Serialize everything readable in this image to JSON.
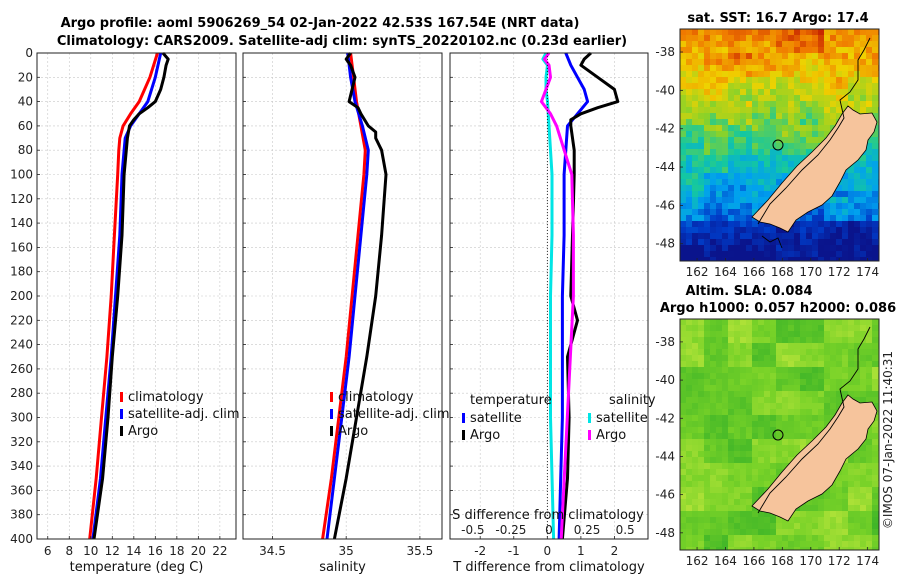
{
  "title": {
    "line1": "Argo profile: aoml 5906269_54 02-Jan-2022 42.53S 167.54E (NRT data)",
    "line2": "Climatology: CARS2009. Satellite-adj clim: synTS_20220102.nc (0.23d earlier)"
  },
  "colors": {
    "climatology": "#ff0000",
    "satellite": "#0000ff",
    "argo": "#000000",
    "cyan": "#00e5e5",
    "magenta": "#ff00ff"
  },
  "chart_data": [
    {
      "type": "line",
      "name": "temperature",
      "xlabel": "temperature (deg C)",
      "ylabel": "",
      "xlim": [
        5,
        23.5
      ],
      "ylim": [
        400,
        0
      ],
      "xticks": [
        6,
        8,
        10,
        12,
        14,
        16,
        18,
        20,
        22
      ],
      "yticks": [
        0,
        20,
        40,
        60,
        80,
        100,
        120,
        140,
        160,
        180,
        200,
        220,
        240,
        260,
        280,
        300,
        320,
        340,
        360,
        380,
        400
      ],
      "legend": [
        "climatology",
        "satellite-adj. clim",
        "Argo"
      ],
      "legend_position": "lower-right",
      "series": [
        {
          "name": "climatology",
          "depth": [
            0,
            20,
            40,
            50,
            60,
            70,
            80,
            100,
            150,
            200,
            250,
            300,
            350,
            400
          ],
          "values": [
            16.2,
            15.5,
            14.5,
            13.7,
            13.0,
            12.7,
            12.6,
            12.5,
            12.2,
            11.9,
            11.5,
            11.0,
            10.5,
            9.9
          ]
        },
        {
          "name": "satellite-adj. clim",
          "depth": [
            0,
            20,
            40,
            50,
            60,
            70,
            80,
            100,
            150,
            200,
            250,
            300,
            350,
            400
          ],
          "values": [
            16.5,
            16.0,
            15.3,
            14.5,
            13.7,
            13.2,
            13.1,
            12.9,
            12.7,
            12.3,
            11.9,
            11.4,
            10.9,
            10.2
          ]
        },
        {
          "name": "Argo",
          "depth": [
            0,
            5,
            10,
            20,
            30,
            40,
            45,
            50,
            55,
            60,
            70,
            80,
            100,
            150,
            200,
            250,
            300,
            350,
            400
          ],
          "values": [
            16.7,
            17.2,
            17.0,
            16.8,
            16.5,
            16.0,
            15.3,
            14.5,
            14.0,
            13.6,
            13.4,
            13.3,
            13.1,
            12.9,
            12.5,
            12.0,
            11.6,
            11.1,
            10.3
          ]
        }
      ]
    },
    {
      "type": "line",
      "name": "salinity",
      "xlabel": "salinity",
      "ylabel": "",
      "xlim": [
        34.3,
        35.65
      ],
      "ylim": [
        400,
        0
      ],
      "xticks": [
        34.5,
        35,
        35.5
      ],
      "xticklabels": [
        "34.5",
        "35",
        "35.5"
      ],
      "legend": [
        "climatology",
        "satellite-adj. clim",
        "Argo"
      ],
      "legend_position": "lower-right",
      "series": [
        {
          "name": "climatology",
          "depth": [
            0,
            20,
            40,
            60,
            80,
            100,
            150,
            200,
            250,
            300,
            350,
            400
          ],
          "values": [
            35.03,
            35.05,
            35.07,
            35.1,
            35.13,
            35.12,
            35.08,
            35.04,
            35.0,
            34.95,
            34.9,
            34.84
          ]
        },
        {
          "name": "satellite-adj. clim",
          "depth": [
            0,
            20,
            40,
            60,
            80,
            100,
            150,
            200,
            250,
            300,
            350,
            400
          ],
          "values": [
            35.01,
            35.03,
            35.06,
            35.11,
            35.15,
            35.14,
            35.1,
            35.06,
            35.02,
            34.97,
            34.92,
            34.87
          ]
        },
        {
          "name": "Argo",
          "depth": [
            0,
            5,
            10,
            20,
            30,
            40,
            45,
            50,
            60,
            65,
            70,
            80,
            100,
            150,
            200,
            250,
            300,
            350,
            400
          ],
          "values": [
            35.03,
            35.0,
            35.03,
            35.06,
            35.04,
            35.02,
            35.08,
            35.1,
            35.15,
            35.2,
            35.2,
            35.24,
            35.27,
            35.24,
            35.2,
            35.14,
            35.07,
            35.0,
            34.92
          ]
        }
      ]
    },
    {
      "type": "line",
      "name": "differences",
      "xlabel": "T difference from climatology",
      "xlabel_top": "S difference from climatology",
      "xlim": [
        -2.9,
        3.0
      ],
      "ylim": [
        400,
        0
      ],
      "xticks": [
        -2,
        -1,
        0,
        1,
        2
      ],
      "xticks_top": [
        -0.5,
        -0.25,
        0,
        0.25,
        0.5
      ],
      "xticks_top_labels": [
        "-0.5",
        "-0.25",
        "0",
        "0.25",
        "0.5"
      ],
      "legend_left_title": "temperature",
      "legend_right_title": "salinity",
      "legend_left": [
        "satellite",
        "Argo"
      ],
      "legend_right": [
        "satellite",
        "Argo"
      ],
      "series": [
        {
          "name": "temperature satellite",
          "axis": "T",
          "depth": [
            0,
            10,
            20,
            30,
            40,
            60,
            80,
            100,
            150,
            200,
            250,
            300,
            350,
            400
          ],
          "values": [
            0.55,
            0.7,
            0.9,
            1.1,
            1.2,
            0.6,
            0.55,
            0.5,
            0.5,
            0.45,
            0.45,
            0.45,
            0.4,
            0.35
          ]
        },
        {
          "name": "temperature Argo",
          "axis": "T",
          "depth": [
            0,
            5,
            10,
            20,
            30,
            40,
            45,
            50,
            55,
            60,
            70,
            80,
            100,
            150,
            200,
            220,
            250,
            300,
            350,
            400
          ],
          "values": [
            1.3,
            1.1,
            1.0,
            1.5,
            2.0,
            2.1,
            1.5,
            1.0,
            0.7,
            0.7,
            0.75,
            0.8,
            0.8,
            0.75,
            0.7,
            0.9,
            0.6,
            0.65,
            0.6,
            0.45
          ]
        },
        {
          "name": "salinity satellite",
          "axis": "S",
          "depth": [
            0,
            5,
            10,
            20,
            30,
            40,
            60,
            80,
            100,
            150,
            200,
            300,
            400
          ],
          "values": [
            -0.02,
            -0.04,
            -0.01,
            -0.02,
            -0.02,
            -0.01,
            0.0,
            0.01,
            0.02,
            0.02,
            0.01,
            0.01,
            0.03
          ]
        },
        {
          "name": "salinity Argo",
          "axis": "S",
          "depth": [
            0,
            5,
            10,
            20,
            30,
            40,
            45,
            50,
            60,
            80,
            100,
            150,
            200,
            300,
            400
          ],
          "values": [
            0.0,
            -0.03,
            0.0,
            0.01,
            -0.02,
            -0.05,
            -0.02,
            0.01,
            0.05,
            0.1,
            0.15,
            0.16,
            0.16,
            0.12,
            0.08
          ]
        }
      ]
    }
  ],
  "maps": [
    {
      "title": "sat. SST: 16.7 Argo: 17.4",
      "title2": "",
      "xticks": [
        "162",
        "164",
        "166",
        "168",
        "170",
        "172",
        "174"
      ],
      "yticks": [
        "-38",
        "-40",
        "-42",
        "-44",
        "-46",
        "-48"
      ]
    },
    {
      "title": "Altim. SLA: 0.084",
      "title2": "Argo h1000: 0.057 h2000: 0.086",
      "xticks": [
        "162",
        "164",
        "166",
        "168",
        "170",
        "172",
        "174"
      ],
      "yticks": [
        "-38",
        "-40",
        "-42",
        "-44",
        "-46",
        "-48"
      ]
    }
  ],
  "credit": "©IMOS 07-Jan-2022 11:40:31"
}
